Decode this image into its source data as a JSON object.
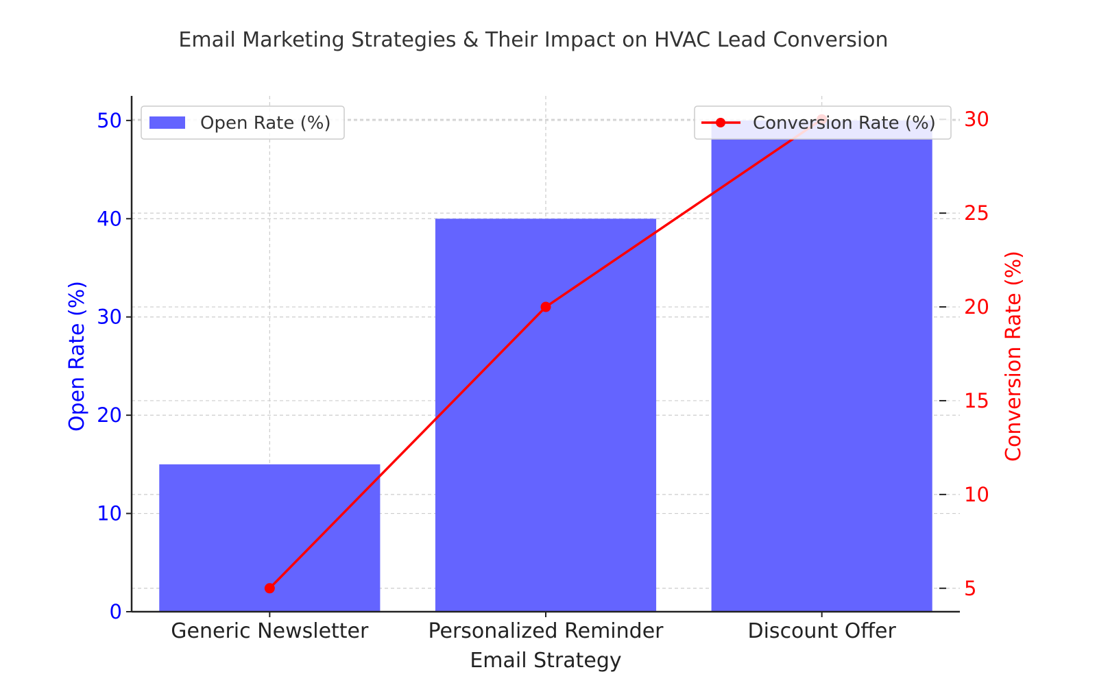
{
  "chart_data": {
    "type": "bar",
    "title": "Email Marketing Strategies & Their Impact on HVAC Lead Conversion",
    "xlabel": "Email Strategy",
    "categories": [
      "Generic Newsletter",
      "Personalized Reminder",
      "Discount Offer"
    ],
    "series": [
      {
        "name": "Open Rate (%)",
        "type": "bar",
        "axis": "left",
        "color": "#6464ff",
        "values": [
          15,
          40,
          50
        ]
      },
      {
        "name": "Conversion Rate (%)",
        "type": "line",
        "axis": "right",
        "color": "#ff0000",
        "values": [
          5,
          20,
          30
        ]
      }
    ],
    "y_left": {
      "label": "Open Rate (%)",
      "range": [
        0,
        52.5
      ],
      "ticks": [
        0,
        10,
        20,
        30,
        40,
        50
      ],
      "color": "#0000ff"
    },
    "y_right": {
      "label": "Conversion Rate (%)",
      "range": [
        3.75,
        31.25
      ],
      "ticks": [
        5,
        10,
        15,
        20,
        25,
        30
      ],
      "color": "#ff0000"
    },
    "grid": true,
    "legends": [
      "top-left",
      "top-right"
    ]
  }
}
